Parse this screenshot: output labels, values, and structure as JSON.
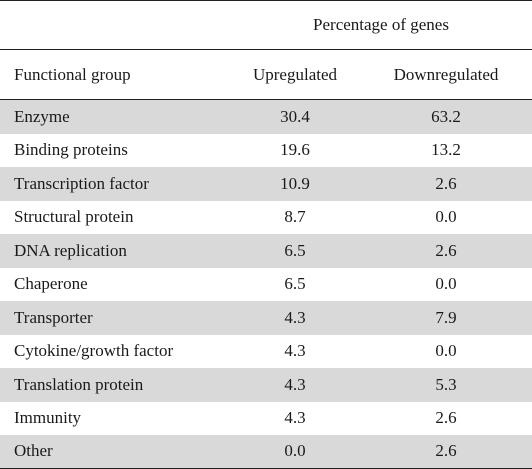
{
  "table": {
    "span_header": "Percentage of genes",
    "columns": {
      "group": "Functional group",
      "up": "Upregulated",
      "down": "Downregulated"
    },
    "rows": [
      {
        "group": "Enzyme",
        "up": "30.4",
        "down": "63.2"
      },
      {
        "group": "Binding proteins",
        "up": "19.6",
        "down": "13.2"
      },
      {
        "group": "Transcription factor",
        "up": "10.9",
        "down": "2.6"
      },
      {
        "group": "Structural protein",
        "up": "8.7",
        "down": "0.0"
      },
      {
        "group": "DNA replication",
        "up": "6.5",
        "down": "2.6"
      },
      {
        "group": "Chaperone",
        "up": "6.5",
        "down": "0.0"
      },
      {
        "group": "Transporter",
        "up": "4.3",
        "down": "7.9"
      },
      {
        "group": "Cytokine/growth factor",
        "up": "4.3",
        "down": "0.0"
      },
      {
        "group": "Translation protein",
        "up": "4.3",
        "down": "5.3"
      },
      {
        "group": "Immunity",
        "up": "4.3",
        "down": "2.6"
      },
      {
        "group": "Other",
        "up": "0.0",
        "down": "2.6"
      }
    ],
    "colors": {
      "shade": "#d9d9d9",
      "rule": "#222222"
    }
  }
}
